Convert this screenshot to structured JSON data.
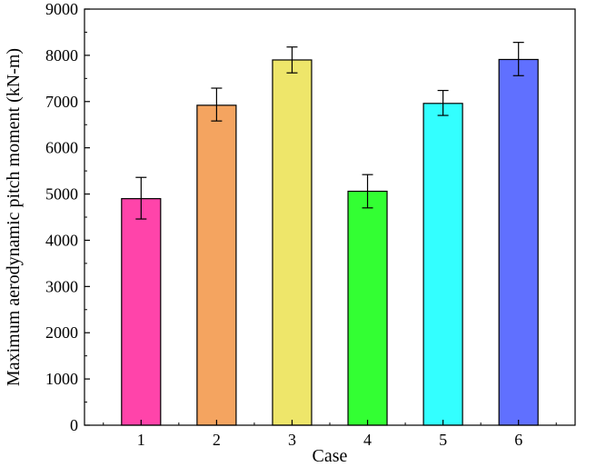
{
  "chart_data": {
    "type": "bar",
    "title": "",
    "xlabel": "Case",
    "ylabel": "Maximum aerodynamic pitch moment (kN-m)",
    "categories": [
      "1",
      "2",
      "3",
      "4",
      "5",
      "6"
    ],
    "values": [
      4900,
      6920,
      7900,
      5060,
      6960,
      7910
    ],
    "error": [
      [
        4460,
        5360
      ],
      [
        6580,
        7290
      ],
      [
        7620,
        8180
      ],
      [
        4700,
        5420
      ],
      [
        6700,
        7240
      ],
      [
        7560,
        8280
      ]
    ],
    "bar_colors": [
      "#ff44aa",
      "#f4a460",
      "#eee66a",
      "#33ff33",
      "#33ffff",
      "#6070ff"
    ],
    "ylim": [
      0,
      9000
    ],
    "yticks": [
      0,
      1000,
      2000,
      3000,
      4000,
      5000,
      6000,
      7000,
      8000,
      9000
    ],
    "grid": false,
    "legend": "none"
  }
}
